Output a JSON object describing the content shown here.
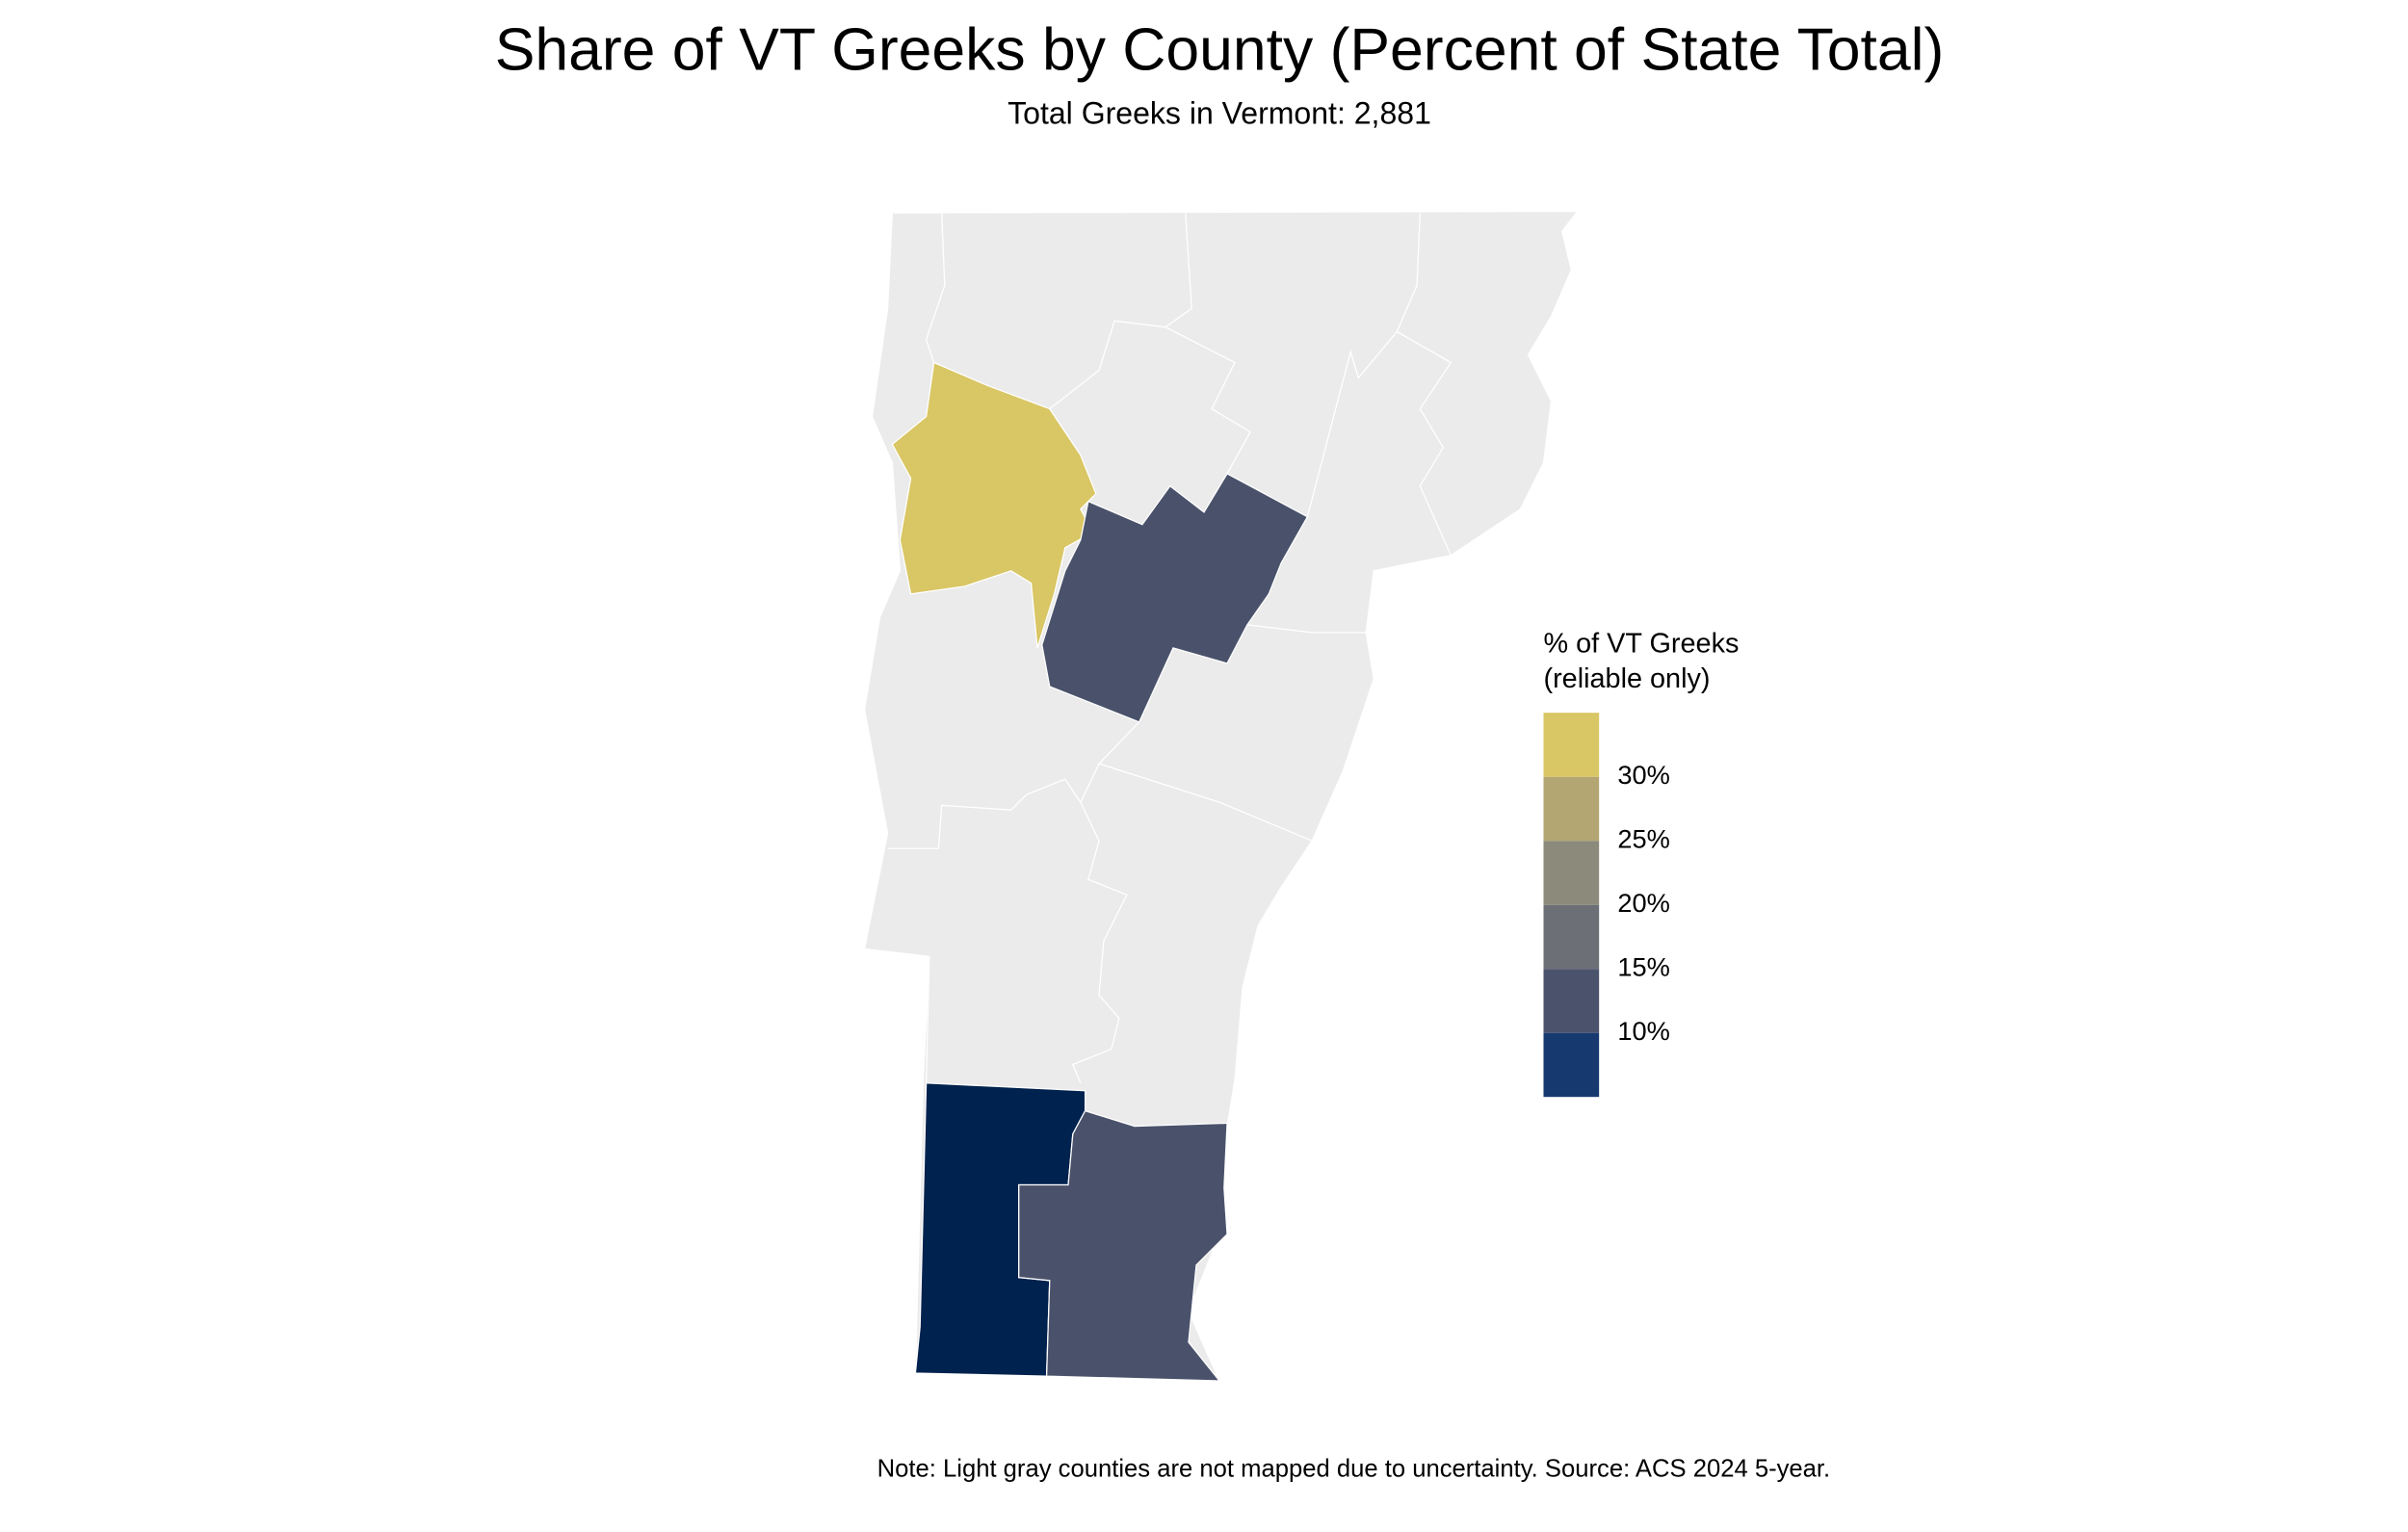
{
  "chart_data": {
    "type": "choropleth",
    "title": "Share of VT Greeks by County (Percent of State Total)",
    "subtitle": "Total Greeks in Vermont: 2,881",
    "note": "Note: Light gray counties are not mapped due to uncertainty. Source: ACS 2024 5-year.",
    "regions": [
      {
        "value": 33,
        "color": "#d9c664"
      },
      {
        "value": 13,
        "color": "#4a526b"
      },
      {
        "value": 4,
        "color": "#00224e"
      },
      {
        "value": 13,
        "color": "#4a526b"
      }
    ],
    "legend": {
      "title": [
        "% of VT Greeks",
        "(reliable only)"
      ],
      "lim": [
        5,
        35
      ],
      "bins": [
        5,
        10,
        15,
        20,
        25,
        30,
        35
      ],
      "colors": [
        "#163a70",
        "#4b536c",
        "#6d6f77",
        "#8c8a7a",
        "#b3a672",
        "#d9c664"
      ],
      "ticks": [
        {
          "value": 10,
          "label": "10%"
        },
        {
          "value": 15,
          "label": "15%"
        },
        {
          "value": 20,
          "label": "20%"
        },
        {
          "value": 25,
          "label": "25%"
        },
        {
          "value": 30,
          "label": "30%"
        }
      ]
    }
  }
}
